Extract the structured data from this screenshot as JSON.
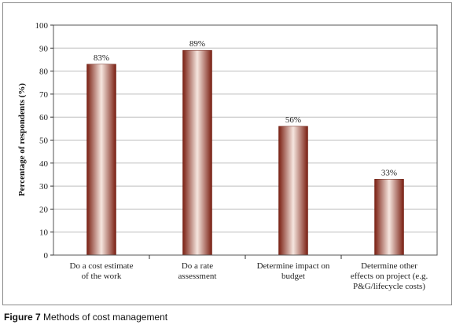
{
  "caption": {
    "figure_number": "Figure 7",
    "text": "Methods of cost management"
  },
  "chart_data": {
    "type": "bar",
    "categories": [
      [
        "Do a cost estimate",
        "of the work"
      ],
      [
        "Do a rate",
        "assessment"
      ],
      [
        "Determine impact on",
        "budget"
      ],
      [
        "Determine other",
        "effects on project (e.g.",
        "P&G/lifecycle costs)"
      ]
    ],
    "values": [
      83,
      89,
      56,
      33
    ],
    "data_labels": [
      "83%",
      "89%",
      "56%",
      "33%"
    ],
    "ylabel": "Percentage of respondents (%)",
    "xlabel": "",
    "ylim": [
      0,
      100
    ],
    "yticks": [
      0,
      10,
      20,
      30,
      40,
      50,
      60,
      70,
      80,
      90,
      100
    ],
    "grid": true,
    "bar_color_dark": "#7a1f12",
    "bar_color_light": "#f6e6df"
  }
}
